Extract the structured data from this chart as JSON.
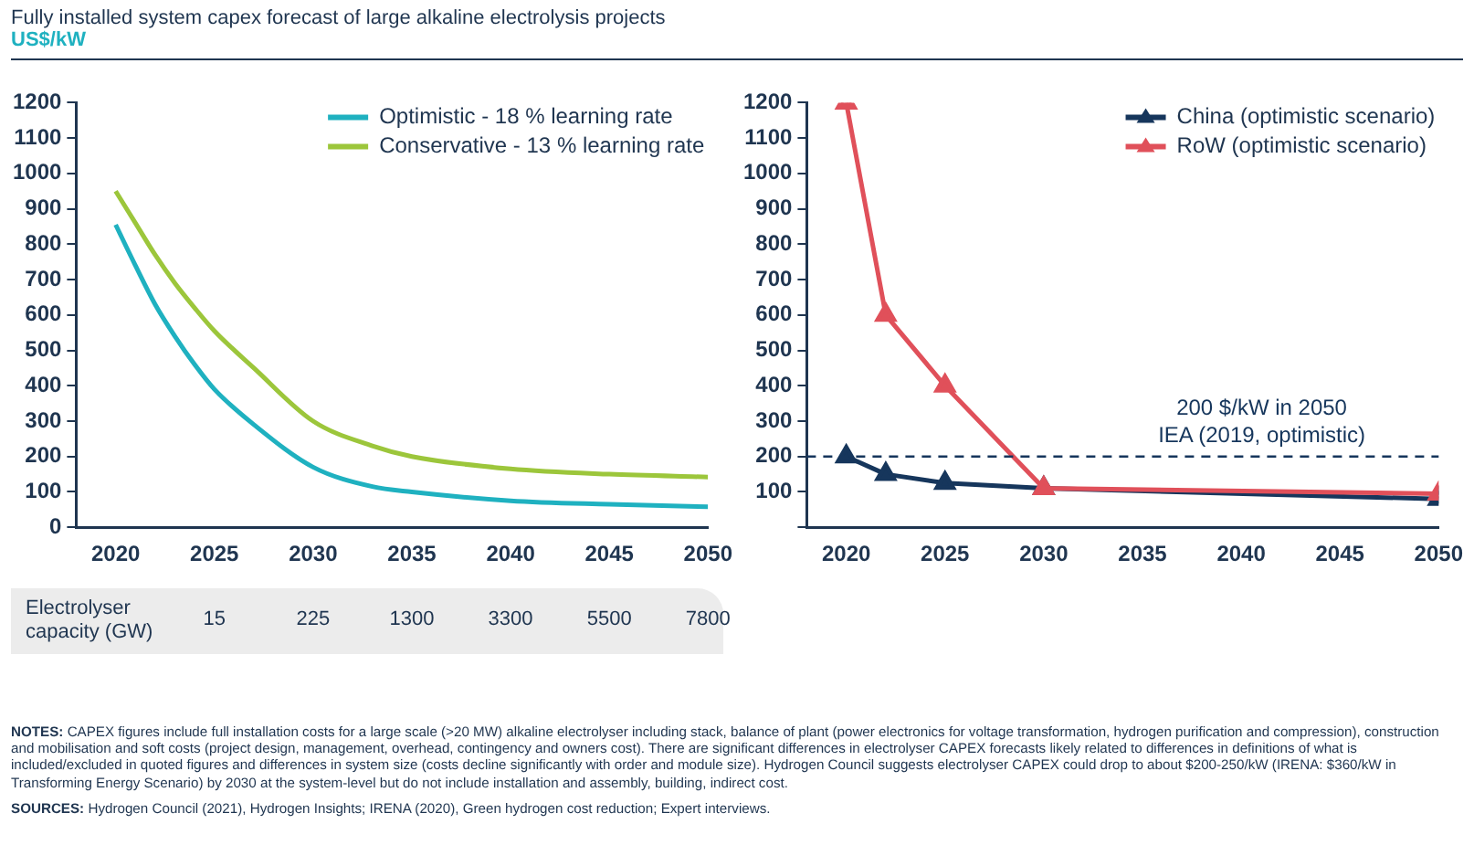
{
  "chart_data": [
    {
      "type": "line",
      "title": "Fully installed system capex forecast of large alkaline electrolysis projects",
      "subtitle": "US$/kW",
      "xlim": [
        2018,
        2050
      ],
      "xticks": [
        2020,
        2025,
        2030,
        2035,
        2040,
        2045,
        2050
      ],
      "ylim": [
        0,
        1200
      ],
      "yticks": [
        0,
        100,
        200,
        300,
        400,
        500,
        600,
        700,
        800,
        900,
        1000,
        1100,
        1200
      ],
      "grid": false,
      "legend": "top right",
      "marker": "none",
      "line_style": "solid",
      "series": [
        {
          "name": "Optimistic - 18 % learning rate",
          "color": "#1fb1c0",
          "x": [
            2020,
            2021,
            2022,
            2023,
            2024,
            2025,
            2027,
            2030,
            2033,
            2035,
            2040,
            2045,
            2050
          ],
          "values": [
            855,
            740,
            630,
            540,
            460,
            390,
            290,
            170,
            115,
            100,
            75,
            65,
            58
          ]
        },
        {
          "name": "Conservative - 13 % learning rate",
          "color": "#9cc63b",
          "x": [
            2020,
            2021,
            2022,
            2023,
            2024,
            2025,
            2027,
            2030,
            2033,
            2035,
            2040,
            2045,
            2050
          ],
          "values": [
            950,
            860,
            770,
            690,
            620,
            555,
            450,
            300,
            230,
            200,
            165,
            150,
            142
          ]
        }
      ],
      "annotations": [
        "Electrolyser capacity (GW)",
        "15",
        "225",
        "1300",
        "3300",
        "5500",
        "7800"
      ]
    },
    {
      "type": "line",
      "xlim": [
        2018,
        2050
      ],
      "xticks": [
        2020,
        2025,
        2030,
        2035,
        2040,
        2045,
        2050
      ],
      "ylim": [
        0,
        1200
      ],
      "yticks": [
        {
          "value": 0,
          "label": null
        },
        100,
        200,
        300,
        400,
        500,
        600,
        700,
        800,
        900,
        1000,
        1100,
        1200
      ],
      "grid": false,
      "legend": "top right",
      "marker": "triangle",
      "line_style": "solid",
      "series": [
        {
          "name": "China (optimistic scenario)",
          "color": "#16365c",
          "x": [
            2020,
            2022,
            2025,
            2030,
            2050
          ],
          "values": [
            200,
            150,
            125,
            110,
            80
          ]
        },
        {
          "name": "RoW (optimistic scenario)",
          "color": "#e0505a",
          "x": [
            2020,
            2022,
            2025,
            2030,
            2050
          ],
          "values": [
            1200,
            600,
            400,
            110,
            95
          ]
        }
      ],
      "ref_lines": [
        {
          "axis": "y",
          "value": 200,
          "label": "200 $/kW in 2050\nIEA (2019, optimistic)",
          "color": "#16365c",
          "line_style": "dashed"
        }
      ],
      "annotations": [
        "NOTES: CAPEX figures include full installation costs for a large scale (>20 MW) alkaline electrolyser including stack, balance of plant (power electronics for voltage transformation, hydrogen purification and compression), construction and mobilisation and soft costs (project design, management, overhead, contingency and owners cost). There are significant differences in electrolyser CAPEX forecasts likely related to differences in definitions of what is included/excluded in quoted figures and differences in system size (costs decline significantly with order and module size). Hydrogen Council suggests electrolyser CAPEX could drop to about $200-250/kW (IRENA: $360/kW in Transforming Energy Scenario) by 2030 at the system-level but do not include installation and assembly, building, indirect cost.",
        "SOURCES: Hydrogen Council (2021), Hydrogen Insights; IRENA (2020), Green hydrogen cost reduction; Expert interviews."
      ]
    }
  ]
}
